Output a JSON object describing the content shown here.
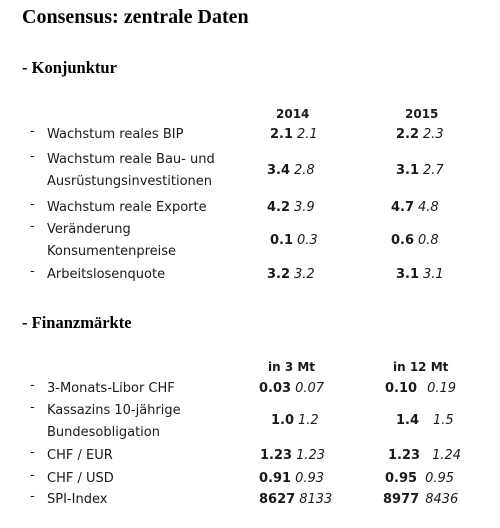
{
  "title": "Consensus: zentrale Daten",
  "sections": [
    {
      "title": "- Konjunktur",
      "columns": [
        "2014",
        "2015"
      ],
      "rows": [
        {
          "label": [
            "Wachstum reales BIP"
          ],
          "v2014": [
            "2.1",
            "2.1"
          ],
          "v2015": [
            "2.2",
            "2.3"
          ]
        },
        {
          "label": [
            "Wachstum reale Bau- und",
            "Ausrüstungsinvestitionen"
          ],
          "v2014": [
            "3.4",
            "2.8"
          ],
          "v2015": [
            "3.1",
            "2.7"
          ]
        },
        {
          "label": [
            "Wachstum reale Exporte"
          ],
          "v2014": [
            "4.2",
            "3.9"
          ],
          "v2015": [
            "4.7",
            "4.8"
          ]
        },
        {
          "label": [
            "Veränderung",
            "Konsumentenpreise"
          ],
          "v2014": [
            "0.1",
            "0.3"
          ],
          "v2015": [
            "0.6",
            "0.8"
          ]
        },
        {
          "label": [
            "Arbeitslosenquote"
          ],
          "v2014": [
            "3.2",
            "3.2"
          ],
          "v2015": [
            "3.1",
            "3.1"
          ]
        }
      ]
    },
    {
      "title": "- Finanzmärkte",
      "columns": [
        "in 3 Mt",
        "in 12 Mt"
      ],
      "rows": [
        {
          "label": [
            "3-Monats-Libor CHF"
          ],
          "v3": [
            "0.03",
            "0.07"
          ],
          "v12": [
            "0.10",
            "0.19"
          ]
        },
        {
          "label": [
            "Kassazins 10-jährige",
            "Bundesobligation"
          ],
          "v3": [
            "1.0",
            "1.2"
          ],
          "v12": [
            "1.4",
            "1.5"
          ]
        },
        {
          "label": [
            "CHF / EUR"
          ],
          "v3": [
            "1.23",
            "1.23"
          ],
          "v12": [
            "1.23",
            "1.24"
          ]
        },
        {
          "label": [
            "CHF / USD"
          ],
          "v3": [
            "0.91",
            "0.93"
          ],
          "v12": [
            "0.95",
            "0.95"
          ]
        },
        {
          "label": [
            "SPI-Index"
          ],
          "v3": [
            "8627",
            "8133"
          ],
          "v12": [
            "8977",
            "8436"
          ]
        }
      ]
    }
  ]
}
